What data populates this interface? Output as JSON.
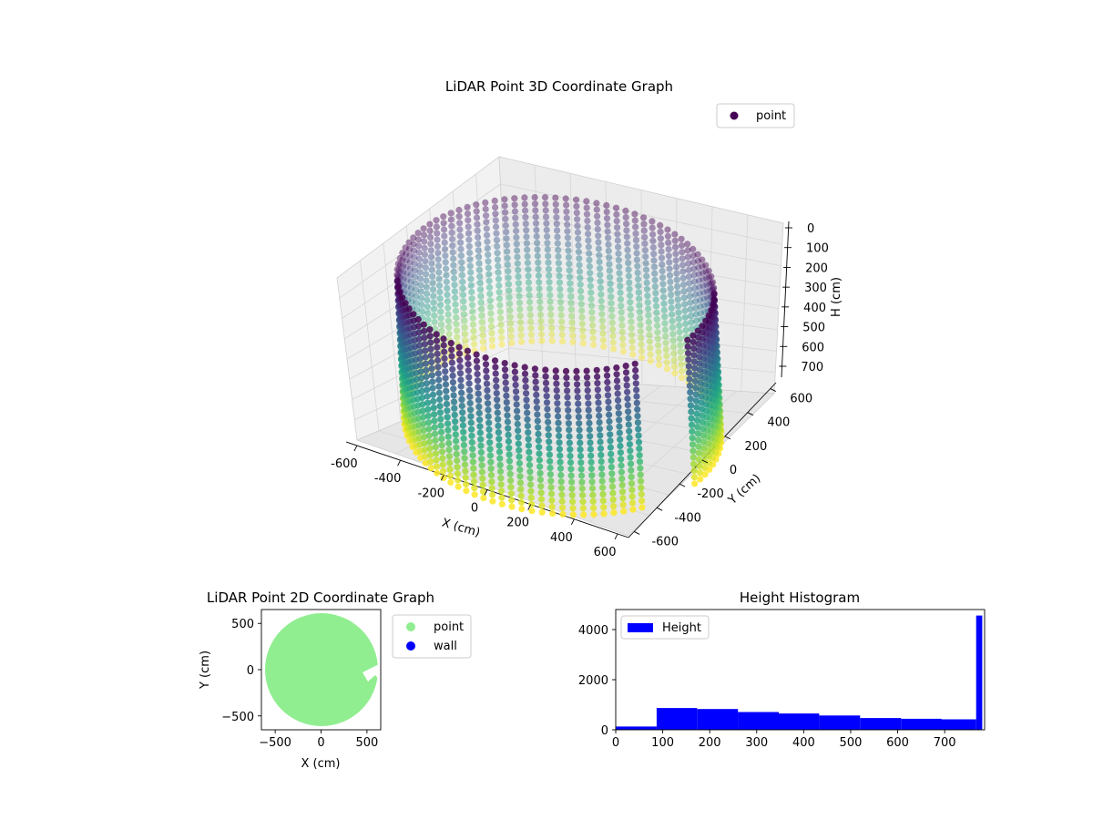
{
  "chart_data": [
    {
      "type": "scatter",
      "projection": "3d",
      "title": "LiDAR Point 3D Coordinate Graph",
      "xlabel": "X (cm)",
      "ylabel": "Y (cm)",
      "zlabel": "H (cm)",
      "xlim": [
        -650,
        650
      ],
      "ylim": [
        -650,
        650
      ],
      "zlim": [
        780,
        0
      ],
      "z_axis_inverted": true,
      "xticks": [
        -600,
        -400,
        -200,
        0,
        200,
        400,
        600
      ],
      "yticks": [
        -600,
        -400,
        -200,
        0,
        200,
        400,
        600
      ],
      "zticks": [
        0,
        100,
        200,
        300,
        400,
        500,
        600,
        700
      ],
      "colormap": "viridis",
      "color_by": "height",
      "shape": "cylinder",
      "cylinder_radius_cm": 620,
      "height_range": [
        0,
        780
      ],
      "gap_angle_range_deg": [
        330,
        352
      ],
      "legend": {
        "entries": [
          {
            "label": "point",
            "color": "#440154"
          }
        ],
        "position": "upper right"
      },
      "grid": true
    },
    {
      "type": "scatter",
      "title": "LiDAR Point 2D Coordinate Graph",
      "xlabel": "X (cm)",
      "ylabel": "Y (cm)",
      "xlim": [
        -650,
        650
      ],
      "ylim": [
        -650,
        650
      ],
      "xticks": [
        -500,
        0,
        500
      ],
      "yticks": [
        -500,
        0,
        500
      ],
      "series": [
        {
          "name": "point",
          "color": "#90ee90",
          "radius_cm": 620
        },
        {
          "name": "wall",
          "color": "#0000ff"
        }
      ],
      "legend_position": "outside right",
      "grid": false
    },
    {
      "type": "bar",
      "subtype": "histogram",
      "title": "Height Histogram",
      "bin_edges": [
        0,
        87,
        173,
        260,
        347,
        433,
        520,
        607,
        693,
        767,
        780
      ],
      "values": [
        130,
        870,
        830,
        710,
        650,
        570,
        470,
        440,
        420,
        4560
      ],
      "xlim": [
        0,
        785
      ],
      "ylim": [
        0,
        4800
      ],
      "xticks": [
        0,
        100,
        200,
        300,
        400,
        500,
        600,
        700
      ],
      "yticks": [
        0,
        2000,
        4000
      ],
      "series": [
        {
          "name": "Height",
          "color": "#0000ff"
        }
      ],
      "legend_position": "upper left",
      "grid": false
    }
  ]
}
